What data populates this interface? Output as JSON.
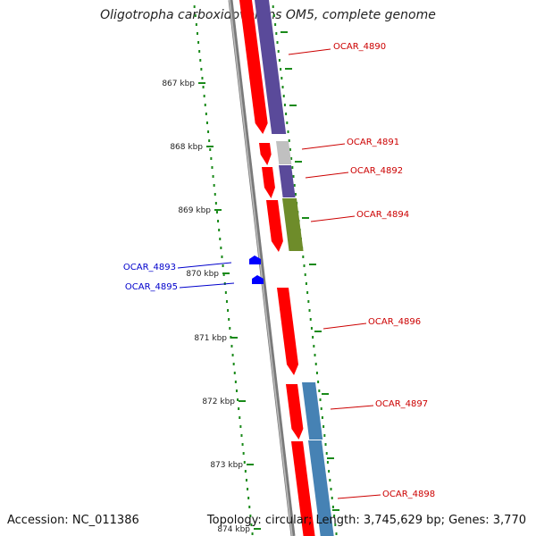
{
  "title": "Oligotropha carboxidovorans OM5, complete genome",
  "accession_text": "Accession: NC_011386",
  "topology_text": "Topology: circular; Length: 3,745,629 bp; Genes: 3,770",
  "kbp_ticks": [
    "867 kbp",
    "868 kbp",
    "869 kbp",
    "870 kbp",
    "871 kbp",
    "872 kbp",
    "873 kbp",
    "874 kbp"
  ],
  "genes_forward": [
    "OCAR_4890",
    "OCAR_4891",
    "OCAR_4892",
    "OCAR_4894",
    "OCAR_4896",
    "OCAR_4897",
    "OCAR_4898"
  ],
  "genes_reverse": [
    "OCAR_4893",
    "OCAR_4895"
  ],
  "colors": {
    "cds": "#ff0000",
    "purple": "#5a4a9a",
    "gray": "#c0c0c0",
    "olive": "#6e8c2a",
    "steelblue": "#4682b4",
    "blue": "#0000ff",
    "label_red": "#cc0000",
    "label_blue": "#0000cc",
    "dots": "#1a8a1a"
  }
}
